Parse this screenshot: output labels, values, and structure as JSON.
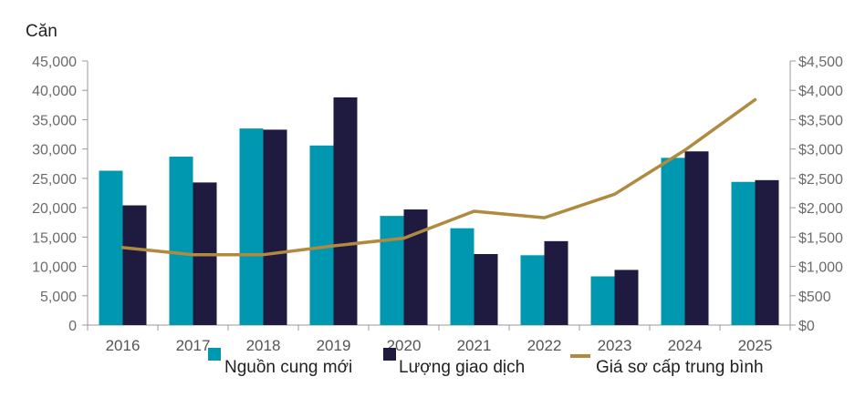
{
  "chart_data": {
    "type": "bar",
    "ylabel": "Căn",
    "categories": [
      "2016",
      "2017",
      "2018",
      "2019",
      "2020",
      "2021",
      "2022",
      "2023",
      "2024",
      "2025"
    ],
    "series": [
      {
        "name": "Nguồn cung mới",
        "kind": "bar",
        "axis": "left",
        "color": "#0098B0",
        "values": [
          26300,
          28700,
          33500,
          30600,
          18600,
          16500,
          11900,
          8300,
          28500,
          24400
        ]
      },
      {
        "name": "Lượng giao dịch",
        "kind": "bar",
        "axis": "left",
        "color": "#1F1A40",
        "values": [
          20400,
          24300,
          33300,
          38800,
          19700,
          12100,
          14300,
          9400,
          29600,
          24700
        ]
      },
      {
        "name": "Giá sơ cấp trung bình",
        "kind": "line",
        "axis": "right",
        "color": "#B08A3E",
        "values": [
          1320,
          1200,
          1200,
          1350,
          1480,
          1940,
          1830,
          2230,
          2980,
          3840
        ]
      }
    ],
    "left_axis": {
      "ylim": [
        0,
        45000
      ],
      "ticks": [
        0,
        5000,
        10000,
        15000,
        20000,
        25000,
        30000,
        35000,
        40000,
        45000
      ],
      "tick_labels": [
        "0",
        "5,000",
        "10,000",
        "15,000",
        "20,000",
        "25,000",
        "30,000",
        "35,000",
        "40,000",
        "45,000"
      ]
    },
    "right_axis": {
      "ylim": [
        0,
        4500
      ],
      "ticks": [
        0,
        500,
        1000,
        1500,
        2000,
        2500,
        3000,
        3500,
        4000,
        4500
      ],
      "tick_labels": [
        "$0",
        "$500",
        "$1,000",
        "$1,500",
        "$2,000",
        "$2,500",
        "$3,000",
        "$3,500",
        "$4,000",
        "$4,500"
      ]
    },
    "grid": false,
    "legend_position": "bottom"
  }
}
